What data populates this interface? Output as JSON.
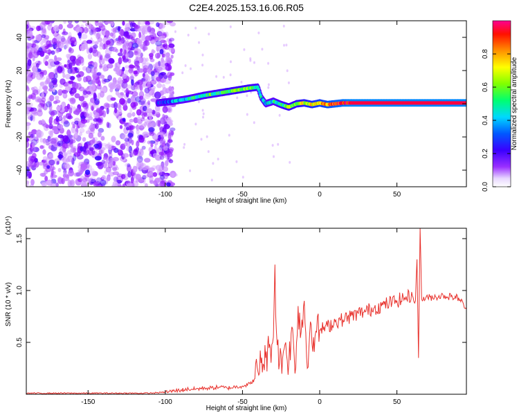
{
  "figure": {
    "title": "C2E4.2025.153.16.06.R05"
  },
  "chart_data": [
    {
      "type": "heatmap",
      "xlabel": "Height of straight line (km)",
      "ylabel": "Frequency (Hz)",
      "xlim": [
        -190,
        95
      ],
      "ylim": [
        -50,
        50
      ],
      "x_ticks": [
        -150,
        -100,
        -50,
        0,
        50
      ],
      "y_ticks": [
        -40,
        -20,
        0,
        20,
        40
      ],
      "colorbar": {
        "label": "Normalized spectral amplitude",
        "range": [
          0,
          1
        ],
        "ticks": [
          "0.0",
          "0.2",
          "0.4",
          "0.6",
          "0.8"
        ],
        "colormap": [
          "#ffffff",
          "#8a00ff",
          "#3200ff",
          "#0060ff",
          "#00d8ff",
          "#00ff80",
          "#80ff00",
          "#ffff00",
          "#ff9000",
          "#ff0000",
          "#ff0080"
        ]
      },
      "ridge": {
        "x": [
          -105,
          -95,
          -85,
          -75,
          -65,
          -55,
          -45,
          -40,
          -38,
          -35,
          -30,
          -25,
          -20,
          -15,
          -10,
          -5,
          0,
          5,
          10,
          15,
          20,
          30,
          40,
          50,
          60,
          65,
          70,
          80,
          90,
          95
        ],
        "y": [
          0.5,
          1.5,
          3,
          5,
          6.5,
          8,
          9.5,
          10,
          4,
          0,
          1.5,
          -0.5,
          -2,
          0,
          0.5,
          -0.5,
          0.5,
          -0.5,
          0,
          0.5,
          0.5,
          0.5,
          0.5,
          0.5,
          0.5,
          0.5,
          0.5,
          0.5,
          0.5,
          0.5
        ],
        "amplitude": [
          0.2,
          0.35,
          0.45,
          0.5,
          0.5,
          0.55,
          0.55,
          0.5,
          0.4,
          0.35,
          0.45,
          0.5,
          0.55,
          0.6,
          0.65,
          0.7,
          0.75,
          0.8,
          0.85,
          0.9,
          0.95,
          0.95,
          0.95,
          0.95,
          0.95,
          0.95,
          0.95,
          0.95,
          0.95,
          0.95
        ]
      }
    },
    {
      "type": "line",
      "xlabel": "Height of straight line (km)",
      "ylabel": "SNR (10 * v/v)",
      "y_multiplier": "(x10⁴)",
      "xlim": [
        -190,
        95
      ],
      "ylim": [
        0,
        1.6
      ],
      "x_ticks": [
        -150,
        -100,
        -50,
        0,
        50
      ],
      "y_ticks": [
        0.5,
        1.0,
        1.5
      ],
      "y_tick_labels": [
        "0.5",
        "1.0",
        "1.5"
      ],
      "series": [
        {
          "color": "#e8302b",
          "x": [
            -190,
            -150,
            -110,
            -100,
            -95,
            -90,
            -85,
            -80,
            -75,
            -70,
            -65,
            -60,
            -55,
            -50,
            -45,
            -42,
            -40,
            -38,
            -35,
            -32,
            -30,
            -29,
            -28,
            -26,
            -24,
            -22,
            -20,
            -18,
            -16,
            -14,
            -12,
            -10,
            -8,
            -6,
            -4,
            -2,
            0,
            5,
            10,
            15,
            20,
            25,
            30,
            35,
            40,
            45,
            50,
            55,
            60,
            62,
            63,
            64,
            65,
            66,
            70,
            75,
            80,
            85,
            90,
            95
          ],
          "y": [
            0.01,
            0.01,
            0.01,
            0.02,
            0.03,
            0.04,
            0.05,
            0.05,
            0.06,
            0.06,
            0.07,
            0.06,
            0.07,
            0.08,
            0.1,
            0.15,
            0.22,
            0.3,
            0.35,
            0.45,
            0.55,
            1.25,
            0.6,
            0.3,
            0.35,
            0.5,
            0.3,
            0.65,
            0.2,
            0.85,
            0.6,
            0.9,
            0.25,
            0.7,
            0.55,
            0.6,
            0.62,
            0.65,
            0.7,
            0.72,
            0.75,
            0.78,
            0.8,
            0.83,
            0.85,
            0.88,
            0.9,
            0.93,
            0.95,
            0.9,
            1.3,
            0.35,
            1.6,
            0.92,
            0.93,
            0.94,
            0.95,
            0.94,
            0.93,
            0.82
          ]
        }
      ]
    }
  ]
}
